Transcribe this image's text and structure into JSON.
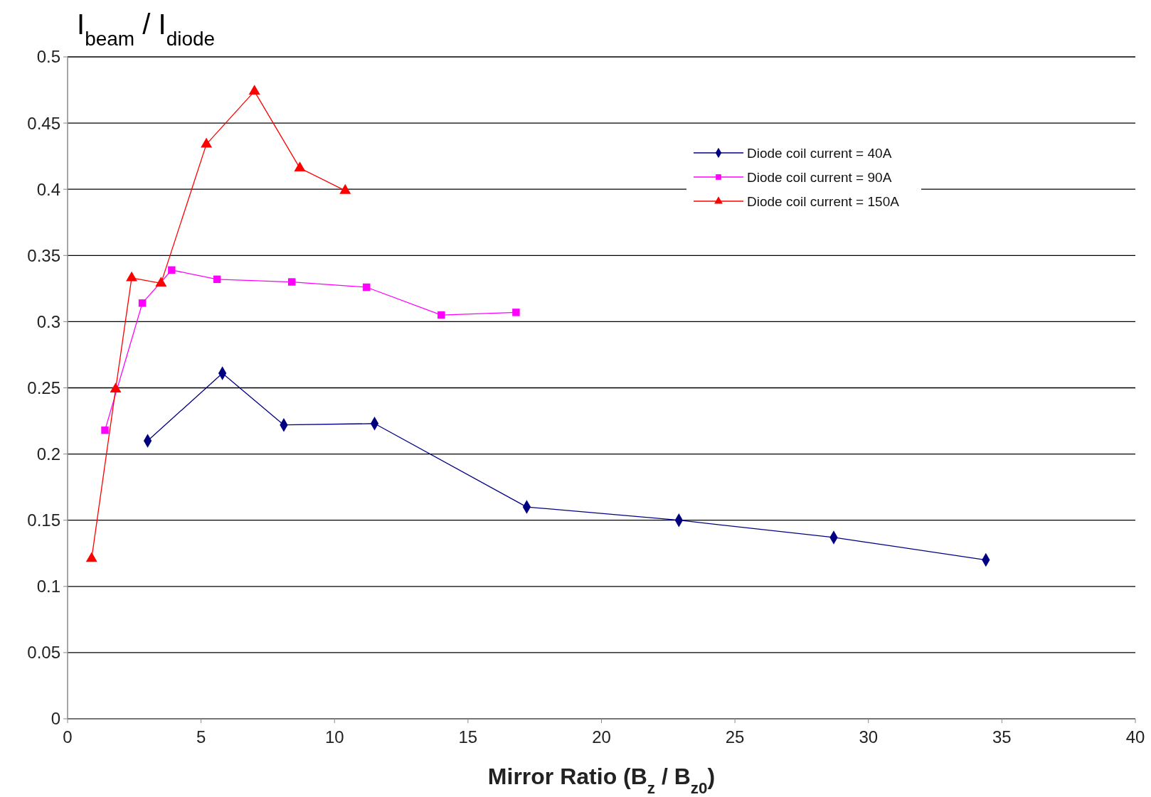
{
  "chart_data": {
    "type": "line",
    "ylabel": "I$_{beam}$ / I$_{diode}$",
    "xlabel": "Mirror Ratio (B$_{z}$ / B$_{z0}$)",
    "xlim": [
      0,
      40
    ],
    "xticks": [
      0,
      5,
      10,
      15,
      20,
      25,
      30,
      35,
      40
    ],
    "ylim": [
      0,
      0.5
    ],
    "yticks": [
      0,
      0.05,
      0.1,
      0.15,
      0.2,
      0.25,
      0.3,
      0.35,
      0.4,
      0.45,
      0.5
    ],
    "grid": "y",
    "legend": "top right",
    "series": [
      {
        "name": "Diode coil current = 40A",
        "color": "#000080",
        "marker": "diamond",
        "x": [
          3.0,
          5.8,
          8.1,
          11.5,
          17.2,
          22.9,
          28.7,
          34.4
        ],
        "values": [
          0.21,
          0.261,
          0.222,
          0.223,
          0.16,
          0.15,
          0.137,
          0.12
        ]
      },
      {
        "name": "Diode coil current = 90A",
        "color": "#ff00ff",
        "marker": "square",
        "x": [
          1.4,
          2.8,
          3.9,
          5.6,
          8.4,
          11.2,
          14.0,
          16.8
        ],
        "values": [
          0.218,
          0.314,
          0.339,
          0.332,
          0.33,
          0.326,
          0.305,
          0.307
        ]
      },
      {
        "name": "Diode coil current = 150A",
        "color": "#ff0000",
        "marker": "triangle",
        "x": [
          0.9,
          1.8,
          2.4,
          3.5,
          5.2,
          7.0,
          8.7,
          10.4
        ],
        "values": [
          0.121,
          0.249,
          0.333,
          0.329,
          0.434,
          0.474,
          0.416,
          0.399
        ]
      }
    ]
  }
}
